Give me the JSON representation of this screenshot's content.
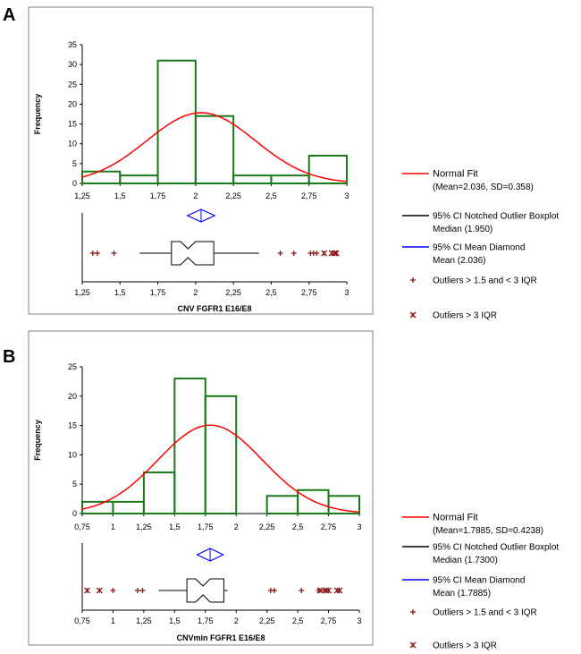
{
  "chart_data": [
    {
      "panel": "A",
      "type": "histogram",
      "xlabel": "CNV FGFR1 E16/E8",
      "ylabel": "Frequency",
      "xlim": [
        1.25,
        3
      ],
      "ylim": [
        0,
        35
      ],
      "x_ticks": [
        "1,25",
        "1,5",
        "1,75",
        "2",
        "2,25",
        "2,5",
        "2,75",
        "3"
      ],
      "y_ticks": [
        "0",
        "5",
        "10",
        "15",
        "20",
        "25",
        "30",
        "35"
      ],
      "bins": [
        {
          "from": 1.25,
          "to": 1.5,
          "count": 3
        },
        {
          "from": 1.5,
          "to": 1.75,
          "count": 2
        },
        {
          "from": 1.75,
          "to": 2.0,
          "count": 31
        },
        {
          "from": 2.0,
          "to": 2.25,
          "count": 17
        },
        {
          "from": 2.25,
          "to": 2.5,
          "count": 2
        },
        {
          "from": 2.5,
          "to": 2.75,
          "count": 2
        },
        {
          "from": 2.75,
          "to": 3.0,
          "count": 7
        }
      ],
      "normal_fit": {
        "mean": 2.036,
        "sd": 0.358,
        "n": 64
      },
      "boxplot": {
        "q1": 1.84,
        "median": 1.95,
        "q3": 2.12,
        "notch_low": 1.9,
        "notch_high": 2.0,
        "whisker_low": 1.63,
        "whisker_high": 2.42
      },
      "mean_diamond": {
        "mean": 2.036,
        "ci_low": 1.946,
        "ci_high": 2.126
      },
      "outliers_mild": [
        1.32,
        1.35,
        1.46,
        2.56,
        2.65,
        2.76,
        2.78,
        2.8
      ],
      "outliers_extreme": [
        2.85,
        2.9,
        2.92,
        2.93
      ],
      "legend": [
        {
          "kind": "line",
          "color": "#ff0000",
          "label": "Normal Fit",
          "sub": "(Mean=2.036, SD=0.358)"
        },
        {
          "kind": "line",
          "color": "#000000",
          "label": "95% CI Notched Outlier Boxplot",
          "sub": "Median (1.950)"
        },
        {
          "kind": "line",
          "color": "#0000ff",
          "label": "95% CI Mean Diamond",
          "sub": "Mean (2.036)"
        },
        {
          "kind": "plus",
          "color": "#8b1a1a",
          "label": "Outliers > 1.5 and < 3 IQR",
          "sub": ""
        },
        {
          "kind": "cross",
          "color": "#8b1a1a",
          "label": "Outliers > 3 IQR",
          "sub": ""
        }
      ]
    },
    {
      "panel": "B",
      "type": "histogram",
      "xlabel": "CNVmin FGFR1 E16/E8",
      "ylabel": "Frequency",
      "xlim": [
        0.75,
        3
      ],
      "ylim": [
        0,
        25
      ],
      "x_ticks": [
        "0,75",
        "1",
        "1,25",
        "1,5",
        "1,75",
        "2",
        "2,25",
        "2,5",
        "2,75",
        "3"
      ],
      "y_ticks": [
        "0",
        "5",
        "10",
        "15",
        "20",
        "25"
      ],
      "bins": [
        {
          "from": 0.75,
          "to": 1.0,
          "count": 2
        },
        {
          "from": 1.0,
          "to": 1.25,
          "count": 2
        },
        {
          "from": 1.25,
          "to": 1.5,
          "count": 7
        },
        {
          "from": 1.5,
          "to": 1.75,
          "count": 23
        },
        {
          "from": 1.75,
          "to": 2.0,
          "count": 20
        },
        {
          "from": 2.0,
          "to": 2.25,
          "count": 0
        },
        {
          "from": 2.25,
          "to": 2.5,
          "count": 3
        },
        {
          "from": 2.5,
          "to": 2.75,
          "count": 4
        },
        {
          "from": 2.75,
          "to": 3.0,
          "count": 3
        }
      ],
      "normal_fit": {
        "mean": 1.7885,
        "sd": 0.4238,
        "n": 64
      },
      "boxplot": {
        "q1": 1.6,
        "median": 1.73,
        "q3": 1.9,
        "notch_low": 1.67,
        "notch_high": 1.79,
        "whisker_low": 1.37,
        "whisker_high": 1.93
      },
      "mean_diamond": {
        "mean": 1.7885,
        "ci_low": 1.683,
        "ci_high": 1.894
      },
      "outliers_mild": [
        1.0,
        1.2,
        1.24,
        2.28,
        2.31,
        2.53,
        2.67,
        2.71
      ],
      "outliers_extreme": [
        0.79,
        0.89,
        2.68,
        2.73,
        2.75,
        2.82,
        2.84
      ],
      "legend": [
        {
          "kind": "line",
          "color": "#ff0000",
          "label": "Normal Fit",
          "sub": "(Mean=1.7885, SD=0.4238)"
        },
        {
          "kind": "line",
          "color": "#000000",
          "label": "95% CI Notched Outlier Boxplot",
          "sub": "Median (1.7300)"
        },
        {
          "kind": "line",
          "color": "#0000ff",
          "label": "95% CI Mean Diamond",
          "sub": "Mean (1.7885)"
        },
        {
          "kind": "plus",
          "color": "#8b1a1a",
          "label": "Outliers > 1.5 and < 3 IQR",
          "sub": ""
        },
        {
          "kind": "cross",
          "color": "#8b1a1a",
          "label": "Outliers > 3 IQR",
          "sub": ""
        }
      ]
    }
  ],
  "colors": {
    "bar": "#1a7a1a",
    "fit": "#ff0000",
    "diamond": "#0000ff",
    "outlier": "#8b1a1a",
    "frame": "#808080"
  }
}
